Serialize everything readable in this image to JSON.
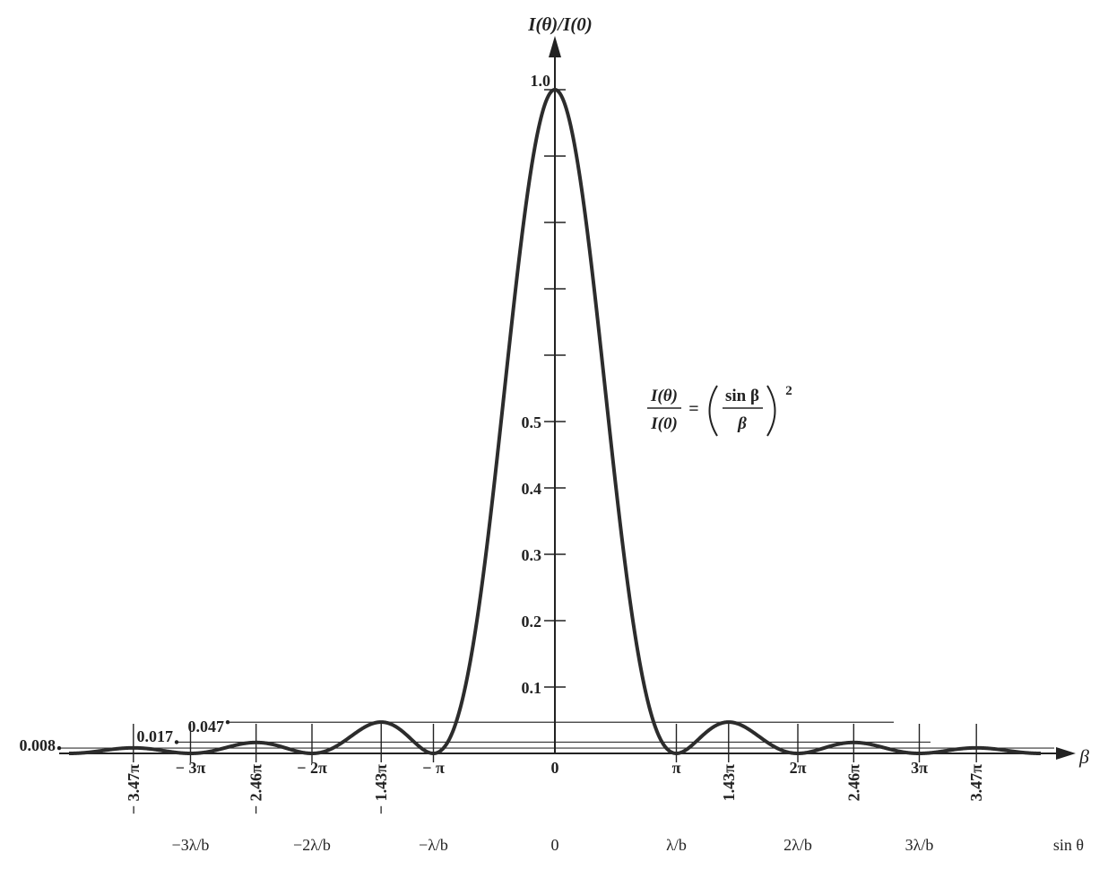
{
  "chart_data": {
    "type": "line",
    "title": "",
    "ylabel": "I(θ)/I(0)",
    "xlabel": "β",
    "xlabel2": "sin θ",
    "ylim": [
      0,
      1.0
    ],
    "xlim_pi": [
      -4.0,
      4.0
    ],
    "formula": {
      "lhs_num": "I(θ)",
      "lhs_den": "I(0)",
      "eq": "=",
      "rhs_num": "sin β",
      "rhs_den": "β",
      "exp": "2"
    },
    "y_ticks": [
      {
        "value": 0.1,
        "label": "0.1"
      },
      {
        "value": 0.2,
        "label": "0.2"
      },
      {
        "value": 0.3,
        "label": "0.3"
      },
      {
        "value": 0.4,
        "label": "0.4"
      },
      {
        "value": 0.5,
        "label": "0.5"
      },
      {
        "value": 0.6,
        "label": ""
      },
      {
        "value": 0.7,
        "label": ""
      },
      {
        "value": 0.8,
        "label": ""
      },
      {
        "value": 0.9,
        "label": ""
      },
      {
        "value": 1.0,
        "label": "1.0"
      }
    ],
    "x_ticks": [
      {
        "beta_pi": -3.47,
        "label": "− 3.47π",
        "rotated": true
      },
      {
        "beta_pi": -3,
        "label": "− 3π",
        "rotated": false
      },
      {
        "beta_pi": -2.46,
        "label": "− 2.46π",
        "rotated": true
      },
      {
        "beta_pi": -2,
        "label": "− 2π",
        "rotated": false
      },
      {
        "beta_pi": -1.43,
        "label": "− 1.43π",
        "rotated": true
      },
      {
        "beta_pi": -1,
        "label": "− π",
        "rotated": false
      },
      {
        "beta_pi": 0,
        "label": "0",
        "rotated": false
      },
      {
        "beta_pi": 1,
        "label": "π",
        "rotated": false
      },
      {
        "beta_pi": 1.43,
        "label": "1.43π",
        "rotated": true
      },
      {
        "beta_pi": 2,
        "label": "2π",
        "rotated": false
      },
      {
        "beta_pi": 2.46,
        "label": "2.46π",
        "rotated": true
      },
      {
        "beta_pi": 3,
        "label": "3π",
        "rotated": false
      },
      {
        "beta_pi": 3.47,
        "label": "3.47π",
        "rotated": true
      }
    ],
    "sin_ticks": [
      {
        "beta_pi": -3,
        "label": "−3λ/b"
      },
      {
        "beta_pi": -2,
        "label": "−2λ/b"
      },
      {
        "beta_pi": -1,
        "label": "−λ/b"
      },
      {
        "beta_pi": 0,
        "label": "0"
      },
      {
        "beta_pi": 1,
        "label": "λ/b"
      },
      {
        "beta_pi": 2,
        "label": "2λ/b"
      },
      {
        "beta_pi": 3,
        "label": "3λ/b"
      }
    ],
    "secondary_maxima": [
      {
        "value": 0.047,
        "label": "0.047",
        "beta_pi": 1.43
      },
      {
        "value": 0.017,
        "label": "0.017",
        "beta_pi": 2.46
      },
      {
        "value": 0.008,
        "label": "0.008",
        "beta_pi": 3.47
      }
    ],
    "series": [
      {
        "function": "(sin β / β)^2",
        "beta_range_pi": [
          -4.0,
          4.0
        ]
      }
    ]
  }
}
